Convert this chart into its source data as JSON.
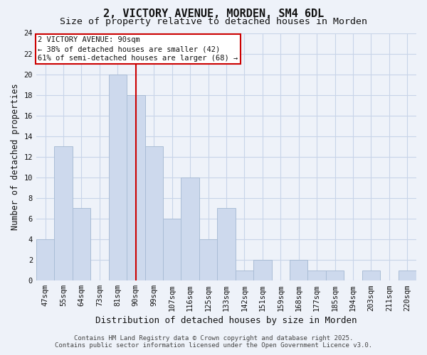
{
  "title": "2, VICTORY AVENUE, MORDEN, SM4 6DL",
  "subtitle": "Size of property relative to detached houses in Morden",
  "xlabel": "Distribution of detached houses by size in Morden",
  "ylabel": "Number of detached properties",
  "categories": [
    "47sqm",
    "55sqm",
    "64sqm",
    "73sqm",
    "81sqm",
    "90sqm",
    "99sqm",
    "107sqm",
    "116sqm",
    "125sqm",
    "133sqm",
    "142sqm",
    "151sqm",
    "159sqm",
    "168sqm",
    "177sqm",
    "185sqm",
    "194sqm",
    "203sqm",
    "211sqm",
    "220sqm"
  ],
  "values": [
    4,
    13,
    7,
    0,
    20,
    18,
    13,
    6,
    10,
    4,
    7,
    1,
    2,
    0,
    2,
    1,
    1,
    0,
    1,
    0,
    1
  ],
  "bar_color": "#cdd9ed",
  "bar_edge_color": "#aabdd6",
  "vline_x_index": 5,
  "vline_color": "#cc0000",
  "ylim": [
    0,
    24
  ],
  "yticks": [
    0,
    2,
    4,
    6,
    8,
    10,
    12,
    14,
    16,
    18,
    20,
    22,
    24
  ],
  "annotation_title": "2 VICTORY AVENUE: 90sqm",
  "annotation_line1": "← 38% of detached houses are smaller (42)",
  "annotation_line2": "61% of semi-detached houses are larger (68) →",
  "annotation_box_color": "#ffffff",
  "annotation_box_edge": "#cc0000",
  "grid_color": "#c8d4e8",
  "background_color": "#eef2f9",
  "footer1": "Contains HM Land Registry data © Crown copyright and database right 2025.",
  "footer2": "Contains public sector information licensed under the Open Government Licence v3.0.",
  "title_fontsize": 11,
  "subtitle_fontsize": 9.5,
  "xlabel_fontsize": 9,
  "ylabel_fontsize": 8.5,
  "tick_fontsize": 7.5,
  "annotation_title_fontsize": 8,
  "annotation_body_fontsize": 7.5,
  "footer_fontsize": 6.5
}
